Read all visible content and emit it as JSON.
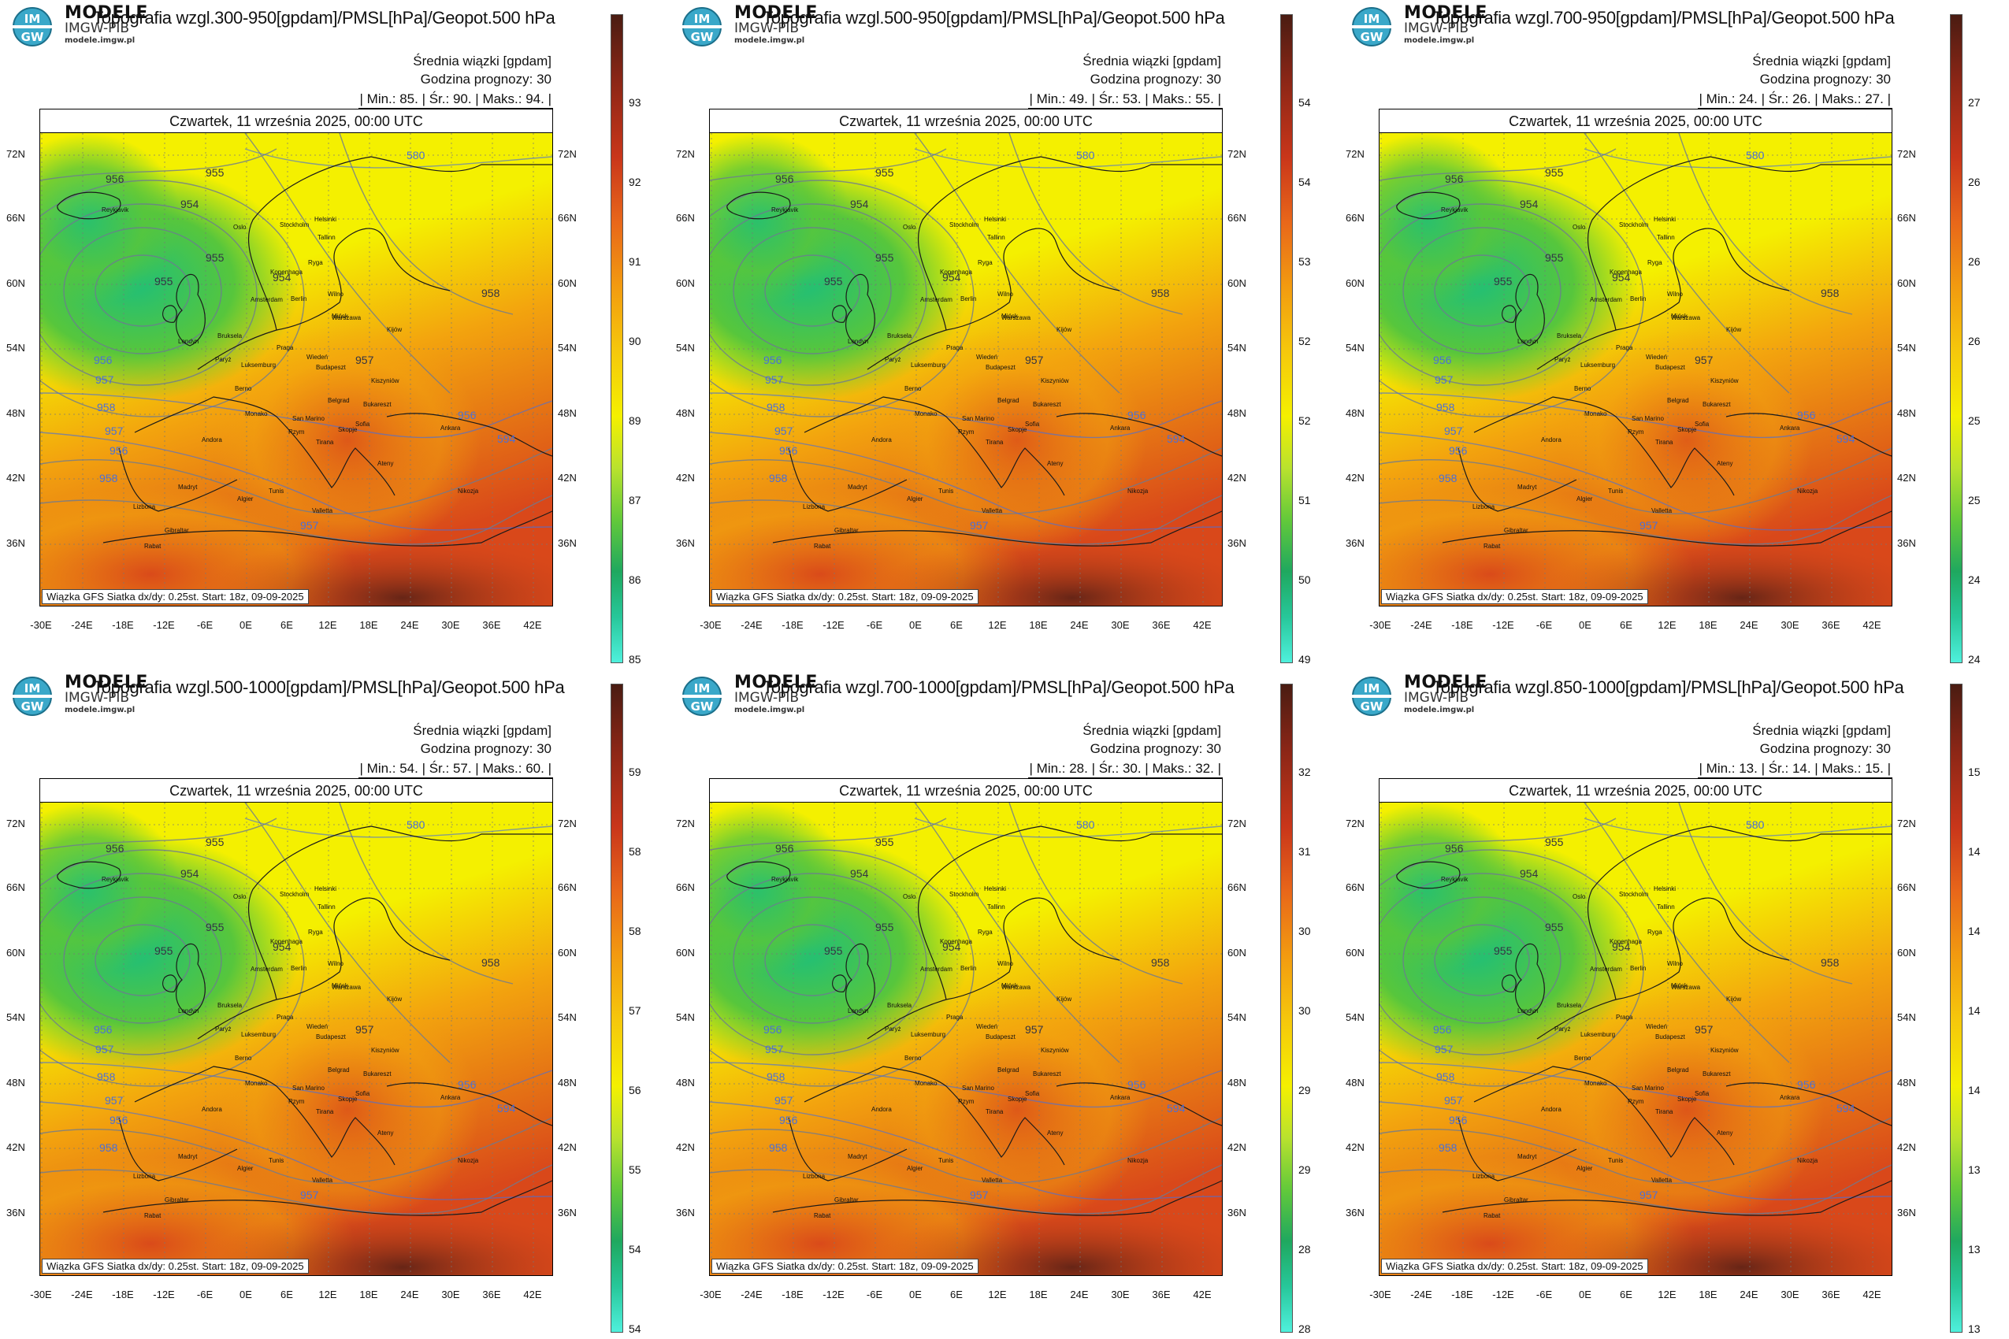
{
  "common": {
    "brand": "MODELE",
    "brand_sub": "IMGW-PIB",
    "brand_url": "modele.imgw.pl",
    "logo_top": "IM",
    "logo_bottom": "GW",
    "info_line1": "Średnia wiązki [gpdam]",
    "info_line2": "Godzina prognozy: 30",
    "date": "Czwartek, 11 września 2025, 00:00 UTC",
    "footer": "Wiązka GFS Siatka dx/dy: 0.25st. Start: 18z, 09-09-2025",
    "lat_labels": [
      "72N",
      "66N",
      "60N",
      "54N",
      "48N",
      "42N",
      "36N"
    ],
    "lon_labels": [
      "-30E",
      "-24E",
      "-18E",
      "-12E",
      "-6E",
      "0E",
      "6E",
      "12E",
      "18E",
      "24E",
      "30E",
      "36E",
      "42E"
    ],
    "cities": [
      "Reykjavik",
      "Oslo",
      "Stockholm",
      "Helsinki",
      "Tallinn",
      "Ryga",
      "Wilno",
      "Mińsk",
      "Kopenhaga",
      "Amsterdam",
      "Berlin",
      "Warszawa",
      "Londyn",
      "Bruksela",
      "Paryż",
      "Luksemburg",
      "Praga",
      "Wiedeń",
      "Berno",
      "Budapeszt",
      "Kiszyniów",
      "Bukareszt",
      "Belgrad",
      "Sofia",
      "Rzym",
      "Andora",
      "Madryt",
      "Lizbona",
      "Ateny",
      "Ankara",
      "Tunis",
      "Algier",
      "Rabat",
      "Gibraltar",
      "Valletta",
      "Nikozja",
      "San Marino",
      "Monako",
      "Skopje",
      "Tirana",
      "Kijów"
    ],
    "contour_labels": [
      "956",
      "955",
      "954",
      "955",
      "956",
      "957",
      "958",
      "957",
      "956",
      "955",
      "954",
      "958",
      "957",
      "580",
      "594",
      "958",
      "956",
      "957"
    ],
    "colors": {
      "green_low": "#1fbf78",
      "green": "#57c63c",
      "yellow": "#f4f000",
      "orange": "#f3a40e",
      "red": "#d9481a",
      "dark_red": "#5a2116",
      "contour": "#6d7a92",
      "contour_blue": "#4a6fd8"
    }
  },
  "panels": [
    {
      "title": "Topografia wzgl.300-950[gpdam]/PMSL[hPa]/Geopot.500 hPa",
      "min": "85.",
      "mean": "90.",
      "max": "94.",
      "stats_text": "| Min.:   85. | Śr.:   90. | Maks.:   94. |",
      "scale_ticks": [
        "93",
        "92",
        "91",
        "90",
        "89",
        "87",
        "86",
        "85"
      ],
      "warm": 0.62
    },
    {
      "title": "Topografia wzgl.500-950[gpdam]/PMSL[hPa]/Geopot.500 hPa",
      "min": "49.",
      "mean": "53.",
      "max": "55.",
      "stats_text": "| Min.:   49. | Śr.:   53. | Maks.:   55. |",
      "scale_ticks": [
        "54",
        "54",
        "53",
        "52",
        "52",
        "51",
        "50",
        "49"
      ],
      "warm": 0.55
    },
    {
      "title": "Topografia wzgl.700-950[gpdam]/PMSL[hPa]/Geopot.500 hPa",
      "min": "24.",
      "mean": "26.",
      "max": "27.",
      "stats_text": "| Min.:   24. | Śr.:   26. | Maks.:   27. |",
      "scale_ticks": [
        "27",
        "26",
        "26",
        "26",
        "25",
        "25",
        "24",
        "24"
      ],
      "warm": 0.5
    },
    {
      "title": "Topografia wzgl.500-1000[gpdam]/PMSL[hPa]/Geopot.500 hPa",
      "min": "54.",
      "mean": "57.",
      "max": "60.",
      "stats_text": "| Min.:   54. | Śr.:   57. | Maks.:   60. |",
      "scale_ticks": [
        "59",
        "58",
        "58",
        "57",
        "56",
        "55",
        "54",
        "54"
      ],
      "warm": 0.6
    },
    {
      "title": "Topografia wzgl.700-1000[gpdam]/PMSL[hPa]/Geopot.500 hPa",
      "min": "28.",
      "mean": "30.",
      "max": "32.",
      "stats_text": "| Min.:   28. | Śr.:   30. | Maks.:   32. |",
      "scale_ticks": [
        "32",
        "31",
        "30",
        "30",
        "29",
        "29",
        "28",
        "28"
      ],
      "warm": 0.6
    },
    {
      "title": "Topografia wzgl.850-1000[gpdam]/PMSL[hPa]/Geopot.500 hPa",
      "min": "13.",
      "mean": "14.",
      "max": "15.",
      "stats_text": "| Min.:   13. | Śr.:   14. | Maks.:   15. |",
      "scale_ticks": [
        "15",
        "14",
        "14",
        "14",
        "14",
        "13",
        "13",
        "13"
      ],
      "warm": 0.68
    }
  ]
}
